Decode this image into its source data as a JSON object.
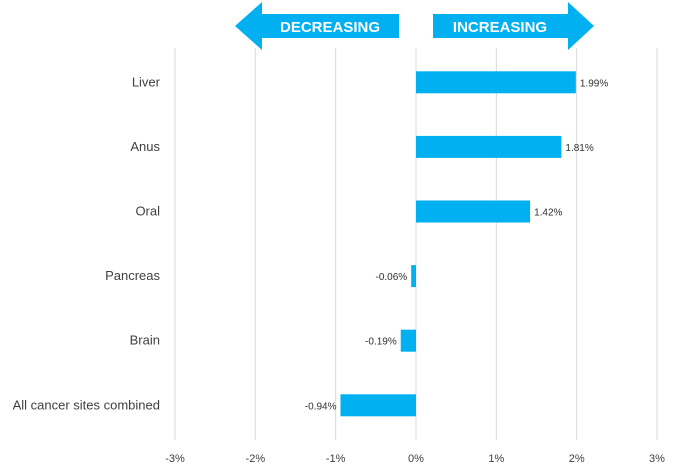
{
  "colors": {
    "bar": "#00b0f0",
    "arrow": "#00b0f0",
    "grid": "#d9d9d9"
  },
  "arrows": {
    "left_label": "DECREASING",
    "right_label": "INCREASING"
  },
  "chart_data": {
    "type": "bar",
    "orientation": "horizontal",
    "categories": [
      "Liver",
      "Anus",
      "Oral",
      "Pancreas",
      "Brain",
      "All cancer sites combined"
    ],
    "values": [
      1.99,
      1.81,
      1.42,
      -0.06,
      -0.19,
      -0.94
    ],
    "data_labels": [
      "1.99%",
      "1.81%",
      "1.42%",
      "-0.06%",
      "-0.19%",
      "-0.94%"
    ],
    "xlim": [
      -3,
      3
    ],
    "xticks": [
      -3,
      -2,
      -1,
      0,
      1,
      2,
      3
    ],
    "xtick_labels": [
      "-3%",
      "-2%",
      "-1%",
      "0%",
      "1%",
      "2%",
      "3%"
    ],
    "grid": "vertical",
    "title": "",
    "xlabel": "",
    "ylabel": ""
  }
}
